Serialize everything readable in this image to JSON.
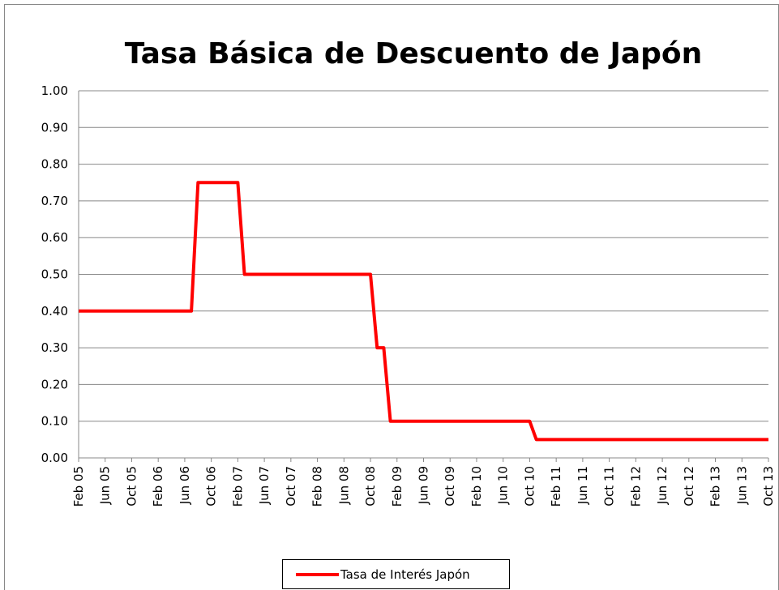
{
  "chart_data": {
    "type": "line",
    "title": "Tasa Básica de Descuento de Japón",
    "categories": [
      "Feb 05",
      null,
      null,
      null,
      "Jun 05",
      null,
      null,
      null,
      "Oct 05",
      null,
      null,
      null,
      "Feb 06",
      null,
      null,
      null,
      "Jun 06",
      null,
      null,
      null,
      "Oct 06",
      null,
      null,
      null,
      "Feb 07",
      null,
      null,
      null,
      "Jun 07",
      null,
      null,
      null,
      "Oct 07",
      null,
      null,
      null,
      "Feb 08",
      null,
      null,
      null,
      "Jun 08",
      null,
      null,
      null,
      "Oct 08",
      null,
      null,
      null,
      "Feb 09",
      null,
      null,
      null,
      "Jun 09",
      null,
      null,
      null,
      "Oct 09",
      null,
      null,
      null,
      "Feb 10",
      null,
      null,
      null,
      "Jun 10",
      null,
      null,
      null,
      "Oct 10",
      null,
      null,
      null,
      "Feb 11",
      null,
      null,
      null,
      "Jun 11",
      null,
      null,
      null,
      "Oct 11",
      null,
      null,
      null,
      "Feb 12",
      null,
      null,
      null,
      "Jun 12",
      null,
      null,
      null,
      "Oct 12",
      null,
      null,
      null,
      "Feb 13",
      null,
      null,
      null,
      "Jun 13",
      null,
      null,
      null,
      "Oct 13"
    ],
    "series": [
      {
        "name": "Tasa de Interés Japón",
        "color": "#ff0000",
        "values": [
          0.4,
          0.4,
          0.4,
          0.4,
          0.4,
          0.4,
          0.4,
          0.4,
          0.4,
          0.4,
          0.4,
          0.4,
          0.4,
          0.4,
          0.4,
          0.4,
          0.4,
          0.4,
          0.75,
          0.75,
          0.75,
          0.75,
          0.75,
          0.75,
          0.75,
          0.5,
          0.5,
          0.5,
          0.5,
          0.5,
          0.5,
          0.5,
          0.5,
          0.5,
          0.5,
          0.5,
          0.5,
          0.5,
          0.5,
          0.5,
          0.5,
          0.5,
          0.5,
          0.5,
          0.5,
          0.3,
          0.3,
          0.1,
          0.1,
          0.1,
          0.1,
          0.1,
          0.1,
          0.1,
          0.1,
          0.1,
          0.1,
          0.1,
          0.1,
          0.1,
          0.1,
          0.1,
          0.1,
          0.1,
          0.1,
          0.1,
          0.1,
          0.1,
          0.1,
          0.05,
          0.05,
          0.05,
          0.05,
          0.05,
          0.05,
          0.05,
          0.05,
          0.05,
          0.05,
          0.05,
          0.05,
          0.05,
          0.05,
          0.05,
          0.05,
          0.05,
          0.05,
          0.05,
          0.05,
          0.05,
          0.05,
          0.05,
          0.05,
          0.05,
          0.05,
          0.05,
          0.05,
          0.05,
          0.05,
          0.05,
          0.05,
          0.05,
          0.05,
          0.05,
          0.05
        ]
      }
    ],
    "ylim": [
      0,
      1
    ],
    "yticks": [
      {
        "value": 0,
        "label": "0.00"
      },
      {
        "value": 0.1,
        "label": "0.10"
      },
      {
        "value": 0.2,
        "label": "0.20"
      },
      {
        "value": 0.3,
        "label": "0.30"
      },
      {
        "value": 0.4,
        "label": "0.40"
      },
      {
        "value": 0.5,
        "label": "0.50"
      },
      {
        "value": 0.6,
        "label": "0.60"
      },
      {
        "value": 0.7,
        "label": "0.70"
      },
      {
        "value": 0.8,
        "label": "0.80"
      },
      {
        "value": 0.9,
        "label": "0.90"
      },
      {
        "value": 1,
        "label": "1.00"
      }
    ],
    "grid": true
  }
}
